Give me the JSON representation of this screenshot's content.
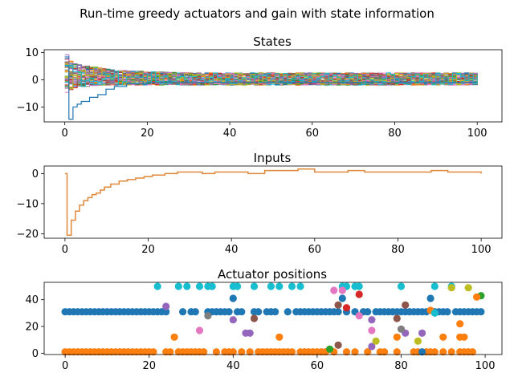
{
  "chart_data": {
    "suptitle": "Run-time greedy actuators and gain with state information",
    "subplots": [
      {
        "id": "states",
        "type": "step",
        "title": "States",
        "xlim": [
          -5,
          106
        ],
        "ylim": [
          -15.5,
          11
        ],
        "xticks": [
          0,
          20,
          40,
          60,
          80,
          100
        ],
        "yticks": [
          -10,
          0,
          10
        ],
        "series_count": 50,
        "envelope": {
          "x": [
            0,
            1,
            2,
            3,
            5,
            8,
            12,
            20,
            30,
            40,
            60,
            80,
            100
          ],
          "upper": [
            9.5,
            7,
            6,
            5.5,
            5,
            4.5,
            3.5,
            3,
            2.5,
            2.5,
            2.5,
            2.5,
            2.5
          ],
          "lower": [
            -5,
            -4,
            -3,
            -2.5,
            -2.5,
            -2,
            -2,
            -2,
            -2,
            -2,
            -2,
            -2,
            -2
          ]
        },
        "min_series": [
          {
            "x": 0,
            "y": 5
          },
          {
            "x": 1,
            "y": -14.5
          },
          {
            "x": 2,
            "y": -10
          },
          {
            "x": 3,
            "y": -9
          },
          {
            "x": 4,
            "y": -8
          },
          {
            "x": 6,
            "y": -6.5
          },
          {
            "x": 8,
            "y": -5.5
          },
          {
            "x": 10,
            "y": -3.5
          },
          {
            "x": 12,
            "y": -2.5
          },
          {
            "x": 15,
            "y": -1.5
          },
          {
            "x": 20,
            "y": -1
          },
          {
            "x": 100,
            "y": -1
          }
        ]
      },
      {
        "id": "inputs",
        "type": "step",
        "title": "Inputs",
        "xlim": [
          -5,
          105
        ],
        "ylim": [
          -21.5,
          2.5
        ],
        "xticks": [
          0,
          20,
          40,
          60,
          80,
          100
        ],
        "yticks": [
          -20,
          -10,
          0
        ],
        "series": [
          {
            "color": "#e0883a",
            "x": [
              0,
              0.5,
              1.5,
              2.5,
              3.5,
              4.5,
              5.5,
              6.5,
              7.5,
              8.5,
              9.5,
              11,
              13,
              15,
              17,
              19,
              21,
              24,
              27,
              30,
              33,
              36,
              40,
              44,
              48,
              52,
              56,
              60,
              64,
              68,
              72,
              76,
              80,
              84,
              88,
              92,
              96,
              100
            ],
            "values": [
              0,
              -20.5,
              -15.5,
              -12.5,
              -10.5,
              -9,
              -8,
              -7,
              -6.5,
              -5.5,
              -4.5,
              -3.5,
              -2.5,
              -2,
              -1.5,
              -1,
              -0.5,
              0,
              0.5,
              0.5,
              0,
              0.5,
              0.5,
              0,
              1,
              1,
              1.5,
              0.5,
              0.5,
              1,
              0.5,
              0.5,
              0.5,
              0.5,
              1,
              0.5,
              0.5,
              0
            ]
          }
        ]
      },
      {
        "id": "actuators",
        "type": "scatter",
        "title": "Actuator positions",
        "xlim": [
          -5,
          104
        ],
        "ylim": [
          -1,
          53
        ],
        "xticks": [
          0,
          20,
          40,
          60,
          80,
          100
        ],
        "yticks": [
          0,
          20,
          40
        ],
        "colors": {
          "blue": "#1f77b4",
          "orange": "#ff7f0e",
          "green": "#2ca02c",
          "red": "#d62728",
          "purple": "#9467bd",
          "brown": "#8c564b",
          "pink": "#e377c2",
          "gray": "#7f7f7f",
          "olive": "#bcbd22",
          "cyan": "#17becf"
        },
        "series": [
          {
            "color": "blue",
            "y": 31,
            "x": [
              0,
              1,
              2,
              3,
              4,
              5,
              6,
              7,
              8,
              9,
              10,
              11,
              12,
              13,
              14,
              15,
              16,
              17,
              18,
              19,
              20,
              21,
              22,
              23,
              24,
              28,
              30,
              31,
              34,
              35,
              36,
              37,
              38,
              39,
              41,
              42,
              45,
              46,
              48,
              49,
              50,
              53,
              55,
              56,
              57,
              58,
              59,
              60,
              61,
              62,
              63,
              64,
              65,
              67,
              69,
              71,
              72,
              74,
              75,
              76,
              77,
              78,
              79,
              80,
              81,
              82,
              83,
              84,
              85,
              86,
              88,
              89,
              90,
              91,
              93,
              94,
              95,
              96,
              97,
              98,
              99
            ]
          },
          {
            "color": "orange",
            "y": 1,
            "x": [
              0,
              1,
              2,
              3,
              4,
              5,
              6,
              7,
              8,
              9,
              10,
              11,
              12,
              13,
              14,
              15,
              16,
              17,
              18,
              19,
              20,
              21,
              24,
              25,
              27,
              28,
              29,
              30,
              31,
              32,
              33,
              36,
              38,
              39,
              40,
              42,
              44,
              46,
              47,
              48,
              49,
              50,
              51,
              52,
              53,
              54,
              56,
              57,
              58,
              59,
              60,
              61,
              62,
              64,
              67,
              69,
              72,
              75,
              76,
              79,
              83,
              84,
              86,
              87,
              88,
              90,
              92,
              94,
              95,
              96,
              97
            ]
          },
          {
            "color": "cyan",
            "y": 50,
            "x": [
              22,
              27,
              29,
              32,
              34,
              35,
              40,
              41,
              45,
              49,
              51,
              54,
              56,
              66,
              67,
              69,
              70,
              80,
              88,
              92
            ]
          },
          {
            "color": "orange",
            "y": 12,
            "x": [
              26,
              51,
              79,
              90,
              94,
              95
            ]
          },
          {
            "color": "blue",
            "y": 41,
            "x": [
              40,
              66,
              87
            ]
          },
          {
            "color": "purple",
            "y": 35,
            "x": [
              24
            ]
          },
          {
            "color": "purple",
            "y": 25,
            "x": [
              40,
              73
            ]
          },
          {
            "color": "purple",
            "y": 15,
            "x": [
              43,
              44,
              81,
              85
            ]
          },
          {
            "color": "purple",
            "y": 5,
            "x": [
              73
            ]
          },
          {
            "color": "pink",
            "y": 17,
            "x": [
              32,
              73
            ]
          },
          {
            "color": "pink",
            "y": 47,
            "x": [
              64,
              66
            ]
          },
          {
            "color": "pink",
            "y": 28,
            "x": [
              70
            ]
          },
          {
            "color": "gray",
            "y": 28,
            "x": [
              34
            ]
          },
          {
            "color": "gray",
            "y": 18,
            "x": [
              80
            ]
          },
          {
            "color": "brown",
            "y": 26,
            "x": [
              45
            ]
          },
          {
            "color": "brown",
            "y": 6,
            "x": [
              65
            ]
          },
          {
            "color": "brown",
            "y": 36,
            "x": [
              65,
              81
            ]
          },
          {
            "color": "brown",
            "y": 26,
            "x": [
              79
            ]
          },
          {
            "color": "red",
            "y": 34,
            "x": [
              67
            ]
          },
          {
            "color": "red",
            "y": 44,
            "x": [
              70
            ]
          },
          {
            "color": "green",
            "y": 3,
            "x": [
              63
            ]
          },
          {
            "color": "green",
            "y": 43,
            "x": [
              99
            ]
          },
          {
            "color": "olive",
            "y": 9,
            "x": [
              74,
              84
            ]
          },
          {
            "color": "olive",
            "y": 49,
            "x": [
              92,
              96
            ]
          },
          {
            "color": "orange",
            "y": 32,
            "x": [
              87
            ]
          },
          {
            "color": "orange",
            "y": 42,
            "x": [
              98
            ]
          },
          {
            "color": "orange",
            "y": 22,
            "x": [
              94
            ]
          },
          {
            "color": "blue",
            "y": 1,
            "x": [
              85
            ]
          },
          {
            "color": "cyan",
            "y": 30,
            "x": [
              88
            ]
          }
        ]
      }
    ]
  }
}
